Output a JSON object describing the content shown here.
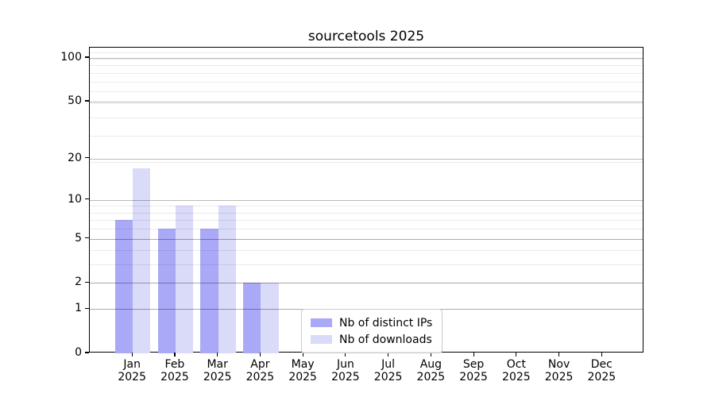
{
  "title": "sourcetools 2025",
  "chart_data": {
    "type": "bar",
    "title": "sourcetools 2025",
    "x_year": "2025",
    "categories": [
      "Jan",
      "Feb",
      "Mar",
      "Apr",
      "May",
      "Jun",
      "Jul",
      "Aug",
      "Sep",
      "Oct",
      "Nov",
      "Dec"
    ],
    "series": [
      {
        "name": "Nb of distinct IPs",
        "color": "#a9a9f7",
        "values": [
          7,
          6,
          6,
          2,
          0,
          0,
          0,
          0,
          0,
          0,
          0,
          0
        ]
      },
      {
        "name": "Nb of downloads",
        "color": "#dadaf9",
        "values": [
          17,
          9,
          9,
          2,
          0,
          0,
          0,
          0,
          0,
          0,
          0,
          0
        ]
      }
    ],
    "xlabel": "",
    "ylabel": "",
    "yscale": "log1p",
    "ylim": [
      0,
      116
    ],
    "y_ticks": [
      0,
      1,
      2,
      5,
      10,
      20,
      50,
      100
    ],
    "grid_minor_values_plus1": [
      2,
      3,
      4,
      5,
      6,
      7,
      8,
      9,
      10,
      20,
      30,
      40,
      50,
      60,
      70,
      80,
      90,
      100,
      110
    ],
    "grid": "on",
    "legend_position": "lower center",
    "colors": {
      "spine": "#000000",
      "grid_major": "#b9b9b9",
      "grid_minor": "#ebebeb",
      "background": "#ffffff"
    }
  }
}
